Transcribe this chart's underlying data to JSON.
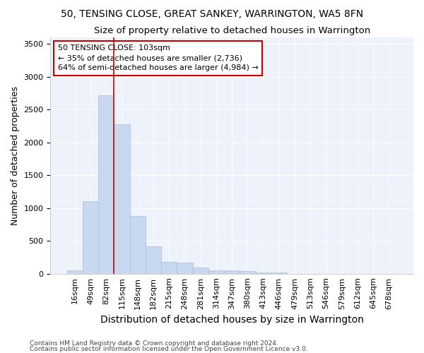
{
  "title": "50, TENSING CLOSE, GREAT SANKEY, WARRINGTON, WA5 8FN",
  "subtitle": "Size of property relative to detached houses in Warrington",
  "xlabel": "Distribution of detached houses by size in Warrington",
  "ylabel": "Number of detached properties",
  "footnote1": "Contains HM Land Registry data © Crown copyright and database right 2024.",
  "footnote2": "Contains public sector information licensed under the Open Government Licence v3.0.",
  "annotation_line1": "50 TENSING CLOSE: 103sqm",
  "annotation_line2": "← 35% of detached houses are smaller (2,736)",
  "annotation_line3": "64% of semi-detached houses are larger (4,984) →",
  "bar_color": "#c8d8f0",
  "bar_edge_color": "#aabcd8",
  "vline_color": "#cc0000",
  "annotation_box_color": "#cc0000",
  "background_color": "#eef2fb",
  "categories": [
    "16sqm",
    "49sqm",
    "82sqm",
    "115sqm",
    "148sqm",
    "182sqm",
    "215sqm",
    "248sqm",
    "281sqm",
    "314sqm",
    "347sqm",
    "380sqm",
    "413sqm",
    "446sqm",
    "479sqm",
    "513sqm",
    "546sqm",
    "579sqm",
    "612sqm",
    "645sqm",
    "678sqm"
  ],
  "values": [
    50,
    1100,
    2720,
    2280,
    880,
    420,
    175,
    165,
    95,
    55,
    50,
    35,
    20,
    15,
    0,
    0,
    0,
    0,
    0,
    0,
    0
  ],
  "ylim": [
    0,
    3600
  ],
  "yticks": [
    0,
    500,
    1000,
    1500,
    2000,
    2500,
    3000,
    3500
  ],
  "vline_x": 2.5,
  "title_fontsize": 10,
  "subtitle_fontsize": 9.5,
  "xlabel_fontsize": 10,
  "ylabel_fontsize": 9,
  "tick_fontsize": 8,
  "annotation_fontsize": 8,
  "footnote_fontsize": 6.5
}
